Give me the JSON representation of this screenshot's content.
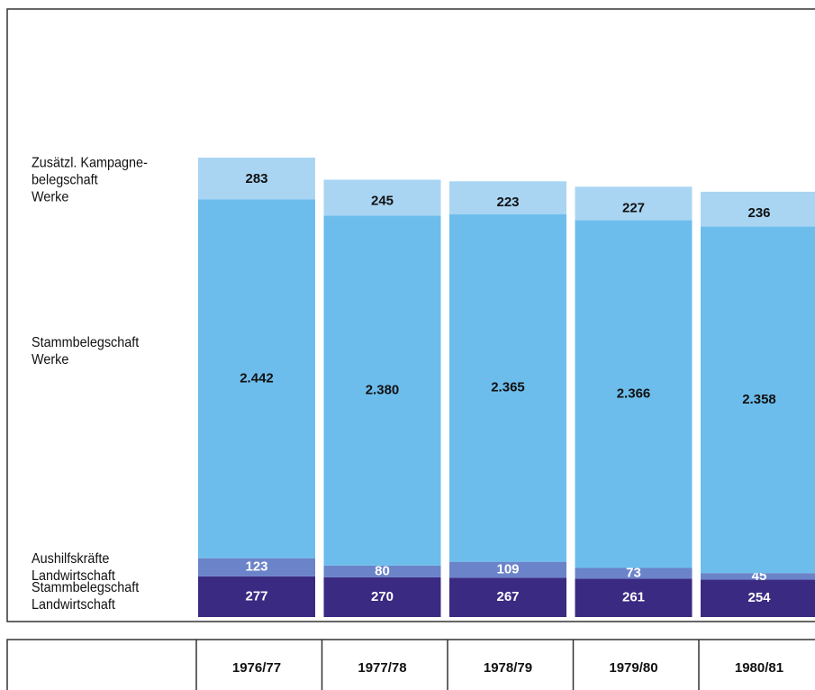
{
  "chart_data": {
    "type": "stacked_bar",
    "categories": [
      "1976/77",
      "1977/78",
      "1978/79",
      "1979/80",
      "1980/81"
    ],
    "series": [
      {
        "name": "Stammbelegschaft\nLandwirtschaft",
        "color": "#3b2a82",
        "values": [
          277,
          270,
          267,
          261,
          254
        ]
      },
      {
        "name": "Aushilfskräfte\nLandwirtschaft",
        "color": "#6b83c9",
        "values": [
          123,
          80,
          109,
          73,
          45
        ]
      },
      {
        "name": "Stammbelegschaft\nWerke",
        "color": "#6dbdec",
        "values": [
          2442,
          2380,
          2365,
          2366,
          2358
        ],
        "value_labels": [
          "2.442",
          "2.380",
          "2.365",
          "2.366",
          "2.358"
        ]
      },
      {
        "name": "Zusätzl. Kampagne-\nbelegschaft\nWerke",
        "color": "#a9d5f3",
        "values": [
          283,
          245,
          223,
          227,
          236
        ]
      }
    ]
  }
}
